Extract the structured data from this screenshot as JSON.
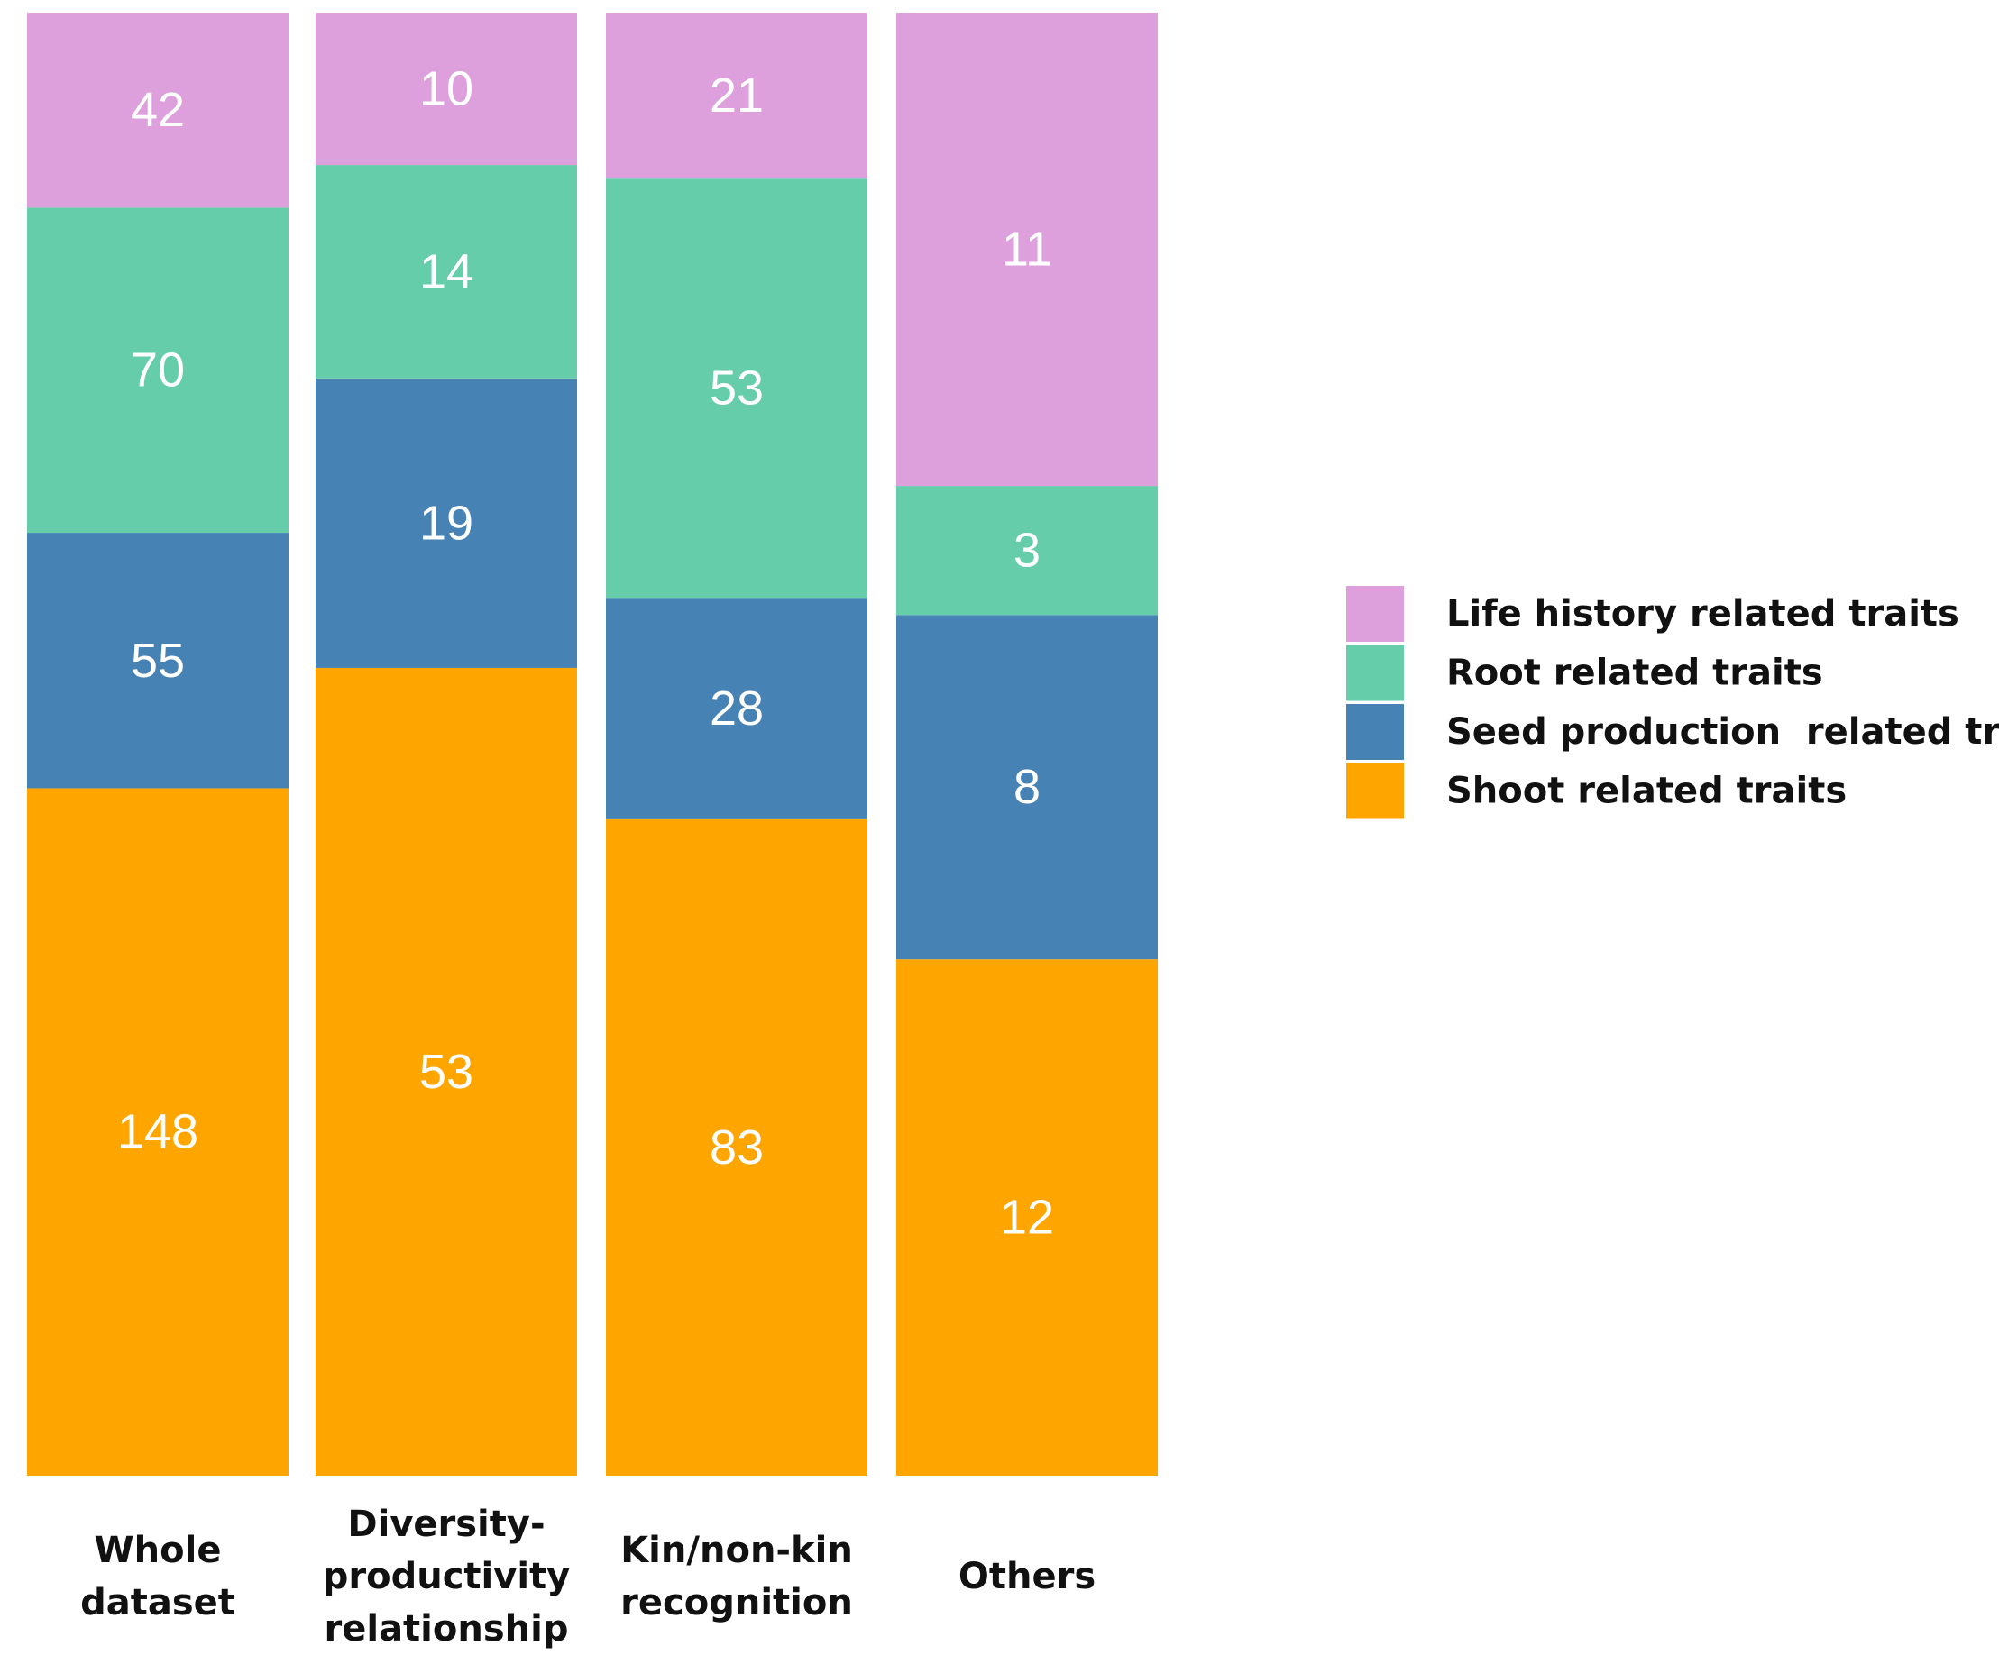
{
  "chart_data": {
    "type": "bar",
    "stacked": true,
    "normalized": true,
    "title": "",
    "xlabel": "",
    "ylabel": "",
    "categories": [
      [
        "Whole",
        "dataset"
      ],
      [
        "Diversity-",
        "productivity",
        "relationship"
      ],
      [
        "Kin/non-kin",
        "recognition"
      ],
      [
        "Others"
      ]
    ],
    "series": [
      {
        "name": "Shoot related traits",
        "color": "#FFA500",
        "values": [
          148,
          53,
          83,
          12
        ]
      },
      {
        "name": "Seed production  related traits",
        "color": "#4682B4",
        "values": [
          55,
          19,
          28,
          8
        ]
      },
      {
        "name": "Root related traits",
        "color": "#66CDAA",
        "values": [
          70,
          14,
          53,
          3
        ]
      },
      {
        "name": "Life history related traits",
        "color": "#DDA0DD",
        "values": [
          42,
          10,
          21,
          11
        ]
      }
    ],
    "legend": {
      "position": "right",
      "order": [
        "Life history related traits",
        "Root related traits",
        "Seed production  related traits",
        "Shoot related traits"
      ]
    }
  }
}
